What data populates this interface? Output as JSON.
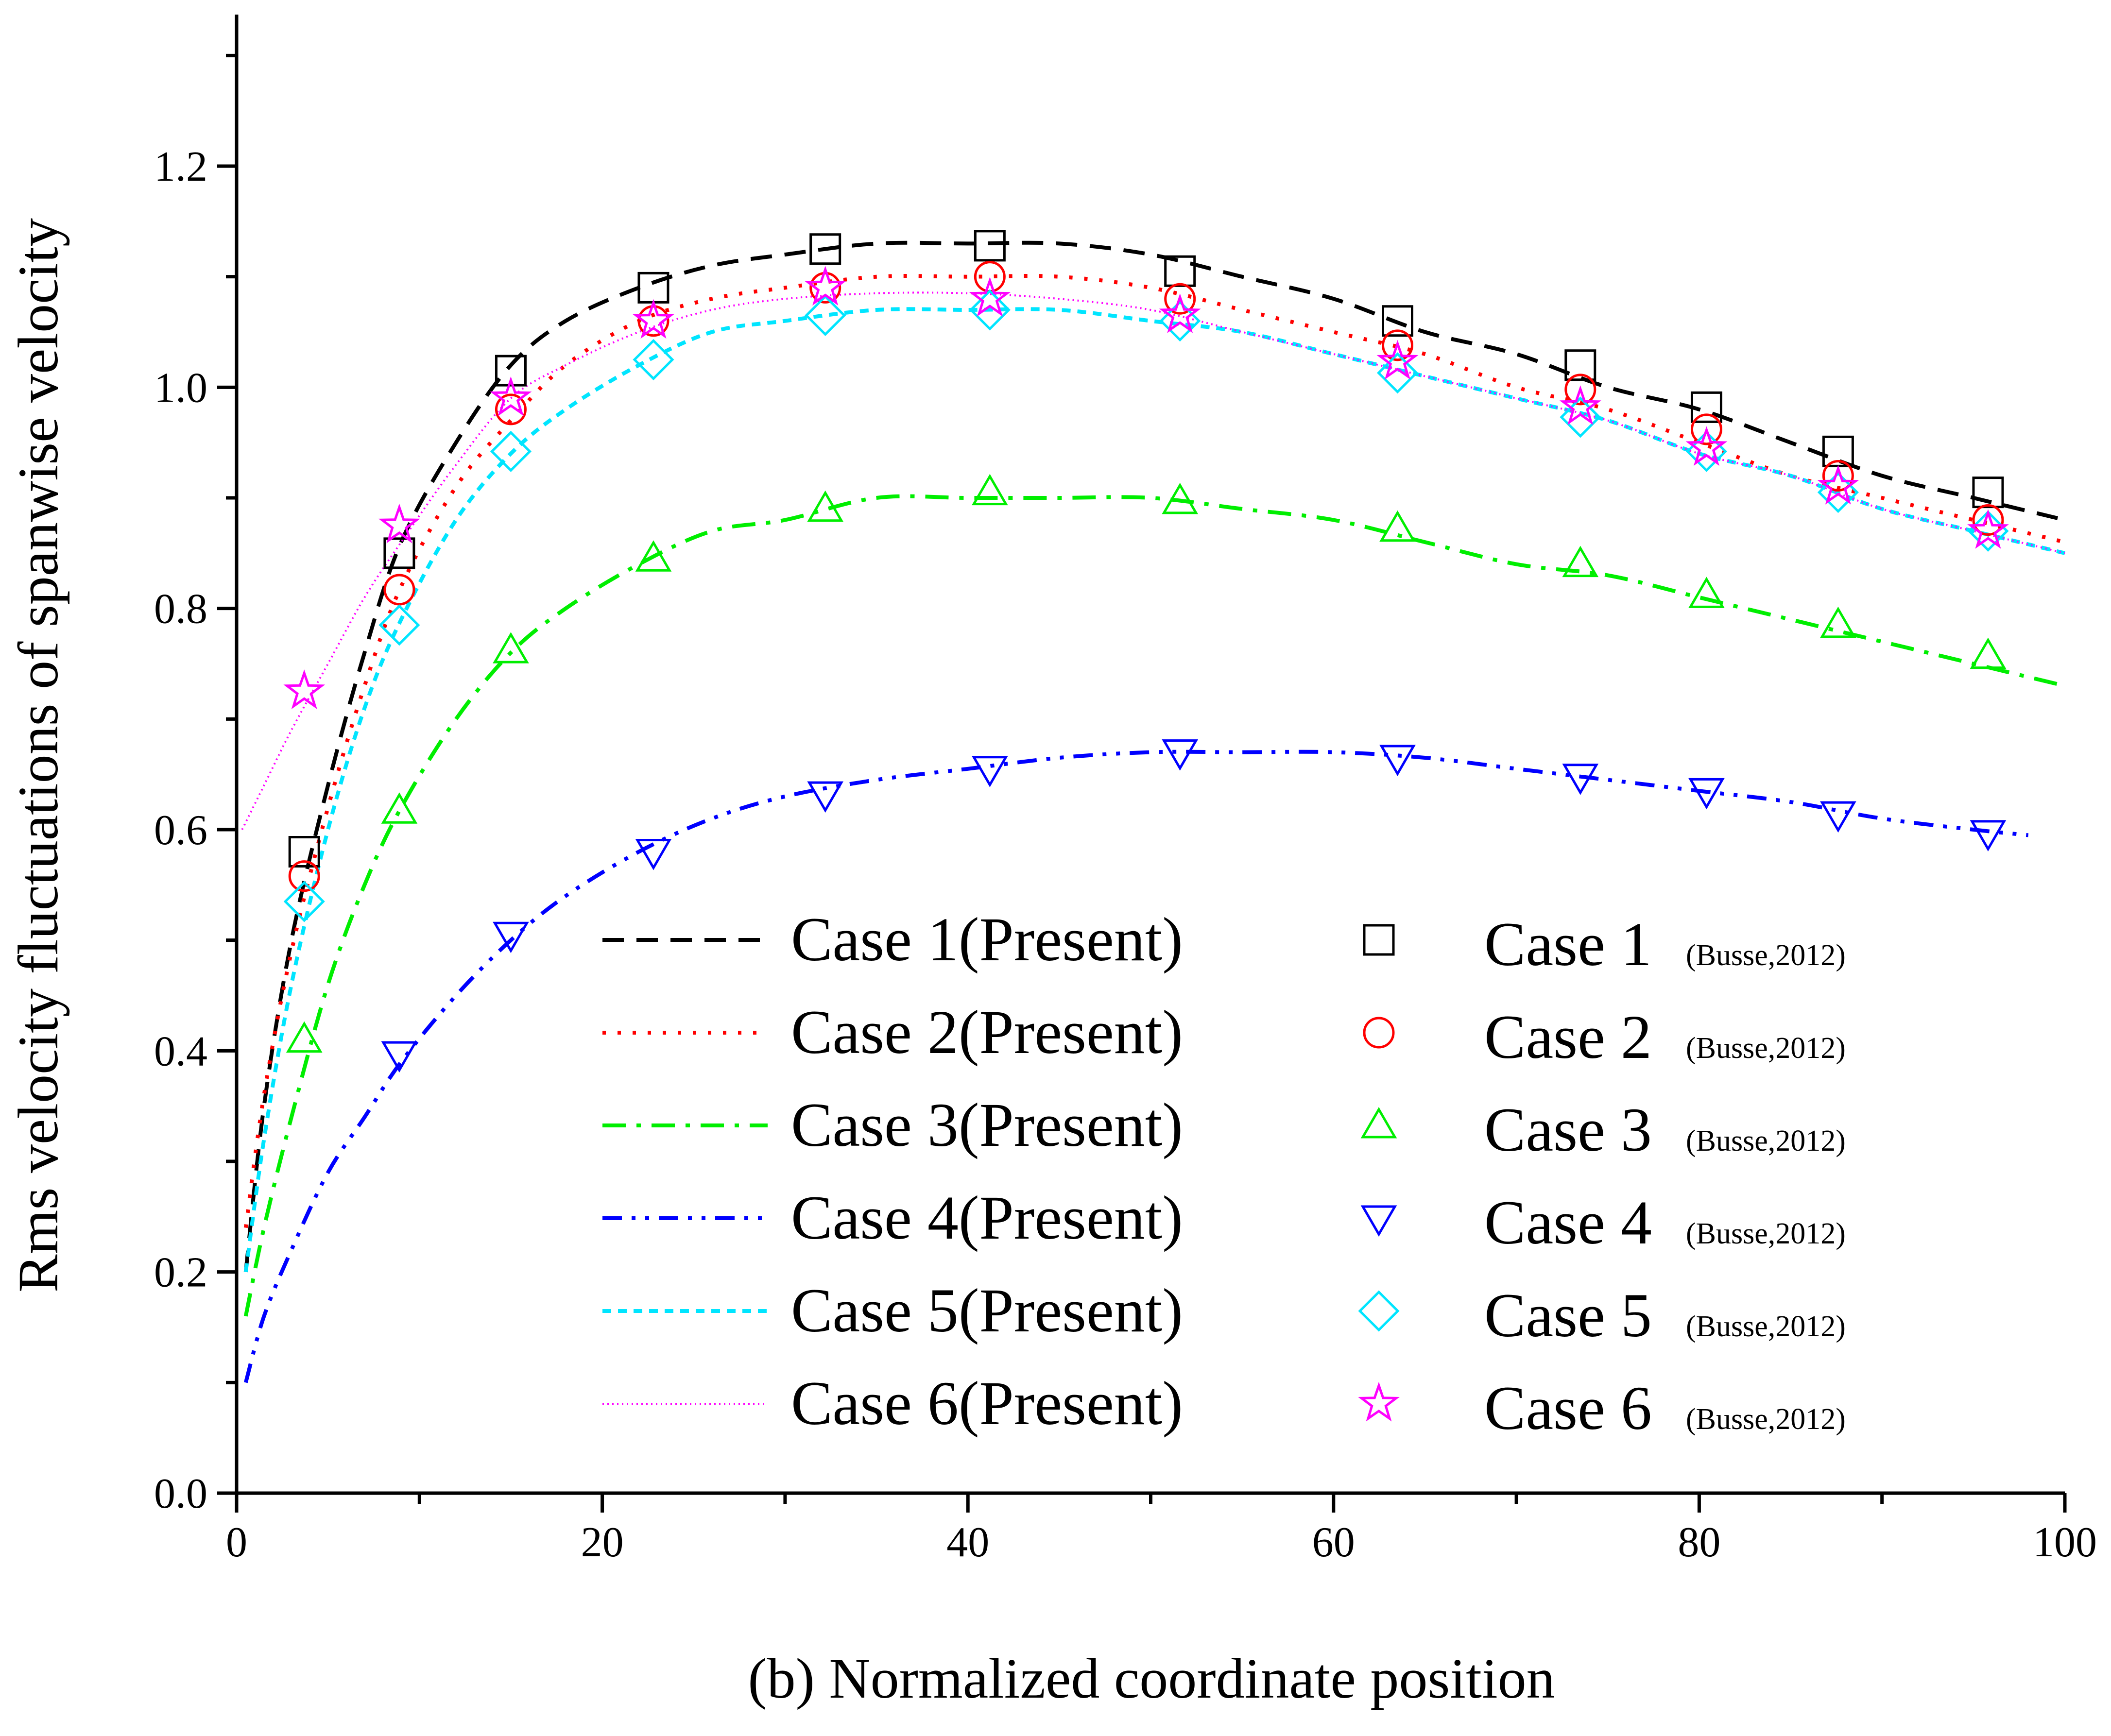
{
  "chart_data": {
    "type": "line",
    "title": "",
    "xlabel": "(b) Normalized coordinate position",
    "ylabel": "Rms velocity fluctuations of spanwise velocity",
    "xlim": [
      0,
      100
    ],
    "ylim": [
      0,
      1.3
    ],
    "x_ticks": [
      0,
      20,
      40,
      60,
      80,
      100
    ],
    "x_tick_labels": [
      "0",
      "20",
      "40",
      "60",
      "80",
      "100"
    ],
    "y_ticks": [
      0.0,
      0.2,
      0.4,
      0.6,
      0.8,
      1.0,
      1.2
    ],
    "y_tick_labels": [
      "0.0",
      "0.2",
      "0.4",
      "0.6",
      "0.8",
      "1.0",
      "1.2"
    ],
    "grid": false,
    "legend_position": "bottom-center",
    "lines": [
      {
        "name": "Case 1(Present)",
        "color": "#000000",
        "dash": "dash",
        "x": [
          0.5,
          1.5,
          3,
          5,
          7,
          9,
          12,
          15,
          18,
          22,
          26,
          30,
          35,
          40,
          45,
          50,
          55,
          60,
          65,
          70,
          75,
          80,
          85,
          90,
          95,
          100
        ],
        "y": [
          0.2,
          0.35,
          0.5,
          0.64,
          0.76,
          0.86,
          0.95,
          1.02,
          1.06,
          1.09,
          1.11,
          1.12,
          1.13,
          1.13,
          1.13,
          1.12,
          1.1,
          1.08,
          1.05,
          1.03,
          1.0,
          0.98,
          0.95,
          0.92,
          0.9,
          0.88
        ]
      },
      {
        "name": "Case 2(Present)",
        "color": "#ff0000",
        "dash": "dot",
        "x": [
          0.5,
          1.5,
          3,
          5,
          7,
          9,
          12,
          15,
          18,
          22,
          26,
          30,
          35,
          40,
          45,
          50,
          55,
          60,
          65,
          70,
          75,
          80,
          85,
          90,
          95,
          100
        ],
        "y": [
          0.24,
          0.36,
          0.49,
          0.62,
          0.73,
          0.82,
          0.91,
          0.97,
          1.02,
          1.06,
          1.08,
          1.09,
          1.1,
          1.1,
          1.1,
          1.09,
          1.07,
          1.05,
          1.03,
          1.0,
          0.98,
          0.95,
          0.92,
          0.9,
          0.88,
          0.86
        ]
      },
      {
        "name": "Case 3(Present)",
        "color": "#00ee00",
        "dash": "dashdot",
        "x": [
          0.5,
          1.5,
          3,
          5,
          7,
          9,
          12,
          15,
          18,
          22,
          26,
          30,
          35,
          40,
          45,
          50,
          55,
          60,
          65,
          70,
          75,
          80,
          85,
          90,
          95,
          100
        ],
        "y": [
          0.16,
          0.24,
          0.34,
          0.46,
          0.55,
          0.62,
          0.7,
          0.76,
          0.8,
          0.84,
          0.87,
          0.88,
          0.9,
          0.9,
          0.9,
          0.9,
          0.89,
          0.88,
          0.86,
          0.84,
          0.83,
          0.81,
          0.79,
          0.77,
          0.75,
          0.73
        ]
      },
      {
        "name": "Case 4(Present)",
        "color": "#0000ff",
        "dash": "dashdotdot",
        "x": [
          0.5,
          1.5,
          3,
          5,
          7,
          9,
          12,
          15,
          18,
          22,
          26,
          30,
          35,
          40,
          45,
          50,
          55,
          60,
          65,
          70,
          75,
          80,
          85,
          90,
          95,
          98
        ],
        "y": [
          0.1,
          0.16,
          0.22,
          0.29,
          0.34,
          0.39,
          0.45,
          0.5,
          0.54,
          0.58,
          0.61,
          0.63,
          0.645,
          0.655,
          0.665,
          0.67,
          0.67,
          0.67,
          0.665,
          0.655,
          0.645,
          0.635,
          0.625,
          0.61,
          0.6,
          0.595
        ]
      },
      {
        "name": "Case 5(Present)",
        "color": "#00e5ff",
        "dash": "shortdash",
        "x": [
          0.5,
          1.5,
          3,
          5,
          7,
          9,
          12,
          15,
          18,
          22,
          26,
          30,
          35,
          40,
          45,
          50,
          55,
          60,
          65,
          70,
          75,
          80,
          85,
          90,
          95,
          100
        ],
        "y": [
          0.2,
          0.32,
          0.46,
          0.6,
          0.71,
          0.79,
          0.88,
          0.94,
          0.98,
          1.02,
          1.05,
          1.06,
          1.07,
          1.07,
          1.07,
          1.06,
          1.05,
          1.03,
          1.01,
          0.99,
          0.97,
          0.94,
          0.92,
          0.89,
          0.87,
          0.85
        ]
      },
      {
        "name": "Case 6(Present)",
        "color": "#ff00ff",
        "dash": "finedot",
        "x": [
          0.3,
          1.5,
          3,
          5,
          7,
          9,
          12,
          15,
          18,
          22,
          26,
          30,
          35,
          40,
          45,
          50,
          55,
          60,
          65,
          70,
          75,
          80,
          85,
          90,
          95,
          100
        ],
        "y": [
          0.6,
          0.64,
          0.69,
          0.75,
          0.81,
          0.86,
          0.93,
          0.99,
          1.02,
          1.05,
          1.07,
          1.08,
          1.085,
          1.085,
          1.08,
          1.07,
          1.05,
          1.03,
          1.01,
          0.99,
          0.97,
          0.94,
          0.92,
          0.89,
          0.87,
          0.85
        ]
      }
    ],
    "markers": [
      {
        "name": "Case 1",
        "source": "(Busse,2012)",
        "color": "#000000",
        "shape": "square",
        "x": [
          3.7,
          8.9,
          15,
          22.8,
          32.2,
          41.2,
          51.6,
          63.5,
          73.5,
          80.4,
          87.6,
          95.8
        ],
        "y": [
          0.58,
          0.85,
          1.015,
          1.09,
          1.125,
          1.128,
          1.105,
          1.06,
          1.02,
          0.982,
          0.942,
          0.905
        ]
      },
      {
        "name": "Case 2",
        "source": "(Busse,2012)",
        "color": "#ff0000",
        "shape": "circle",
        "x": [
          3.7,
          8.9,
          15,
          22.8,
          32.2,
          41.2,
          51.6,
          63.5,
          73.5,
          80.4,
          87.6,
          95.8
        ],
        "y": [
          0.558,
          0.817,
          0.98,
          1.06,
          1.09,
          1.1,
          1.08,
          1.038,
          0.998,
          0.962,
          0.92,
          0.88
        ]
      },
      {
        "name": "Case 3",
        "source": "(Busse,2012)",
        "color": "#00ee00",
        "shape": "triangle-up",
        "x": [
          3.7,
          8.9,
          15,
          22.8,
          32.2,
          41.2,
          51.6,
          63.5,
          73.5,
          80.4,
          87.6,
          95.8
        ],
        "y": [
          0.41,
          0.617,
          0.762,
          0.845,
          0.89,
          0.905,
          0.897,
          0.872,
          0.84,
          0.812,
          0.785,
          0.757
        ]
      },
      {
        "name": "Case 4",
        "source": "(Busse,2012)",
        "color": "#0000ff",
        "shape": "triangle-down",
        "x": [
          8.9,
          15,
          22.8,
          32.2,
          41.2,
          51.6,
          63.5,
          73.5,
          80.4,
          87.6,
          95.8
        ],
        "y": [
          0.397,
          0.505,
          0.58,
          0.632,
          0.655,
          0.67,
          0.665,
          0.648,
          0.635,
          0.614,
          0.597
        ]
      },
      {
        "name": "Case 5",
        "source": "(Busse,2012)",
        "color": "#00e5ff",
        "shape": "diamond",
        "x": [
          3.7,
          8.9,
          15,
          22.8,
          32.2,
          41.2,
          51.6,
          63.5,
          73.5,
          80.4,
          87.6,
          95.8
        ],
        "y": [
          0.535,
          0.785,
          0.942,
          1.025,
          1.065,
          1.07,
          1.06,
          1.013,
          0.973,
          0.942,
          0.905,
          0.87
        ]
      },
      {
        "name": "Case 6",
        "source": "(Busse,2012)",
        "color": "#ff00ff",
        "shape": "star",
        "x": [
          3.7,
          8.9,
          15,
          22.8,
          32.2,
          41.2,
          51.6,
          63.5,
          73.5,
          80.4,
          87.6,
          95.8
        ],
        "y": [
          0.725,
          0.875,
          0.99,
          1.06,
          1.09,
          1.08,
          1.065,
          1.023,
          0.982,
          0.945,
          0.91,
          0.87
        ]
      }
    ]
  }
}
